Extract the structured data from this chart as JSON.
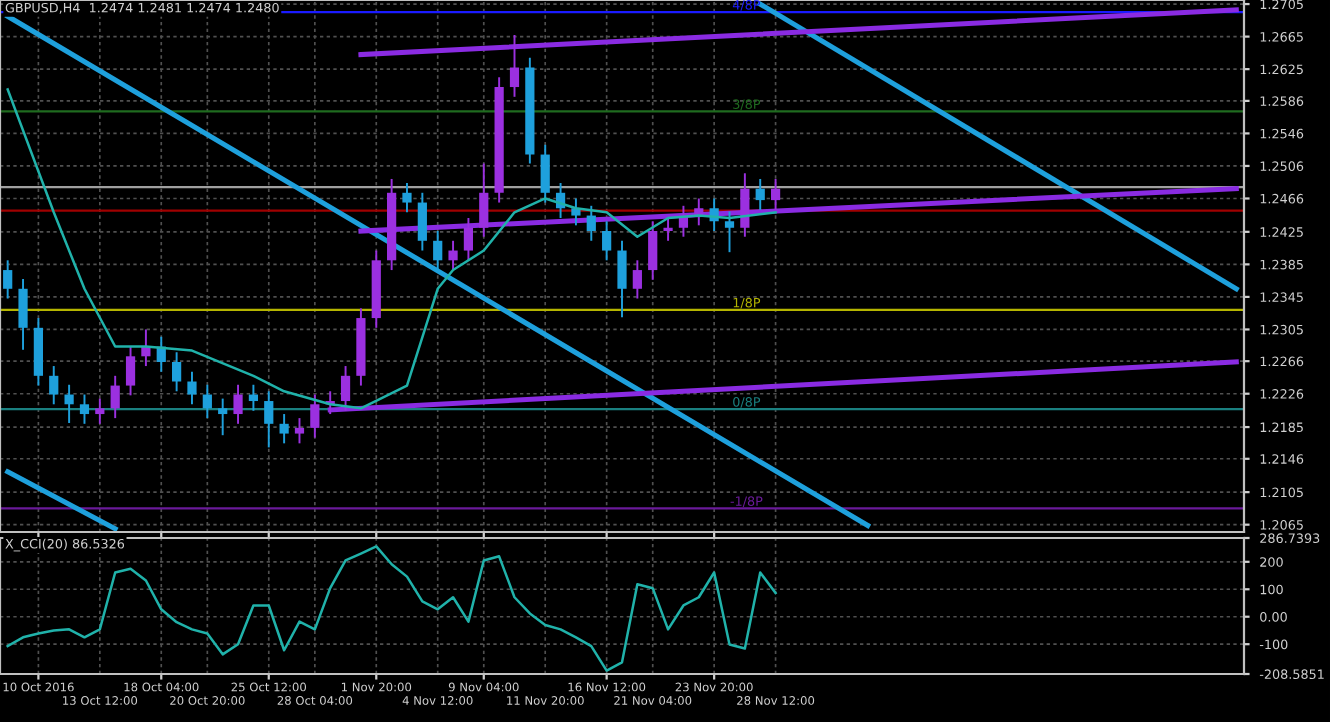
{
  "chart_data": [
    {
      "type": "candlestick",
      "title": "GBPUSD,H4  1.2474 1.2481 1.2474 1.2480",
      "categories": [
        null,
        null,
        null,
        null,
        null,
        null,
        null,
        null,
        null,
        null,
        null,
        null,
        null,
        null,
        null,
        null,
        null,
        null,
        null,
        null,
        null,
        null,
        null,
        null,
        null,
        null,
        null,
        null,
        null,
        null,
        null,
        null,
        null,
        null,
        null,
        null,
        null,
        null,
        null,
        null,
        null,
        null,
        null,
        null,
        null,
        null,
        null,
        null,
        null,
        null,
        null,
        null,
        null,
        null,
        null,
        null,
        null,
        null,
        null,
        null,
        null,
        null,
        null,
        null,
        null,
        null,
        null,
        null,
        null,
        null,
        null,
        null,
        null,
        null,
        null,
        null,
        null,
        null,
        null,
        null,
        null
      ],
      "ohlc": [
        [
          1.2378,
          1.239,
          1.2343,
          1.2355
        ],
        [
          1.2355,
          1.2367,
          1.228,
          1.2307
        ],
        [
          1.2307,
          1.2319,
          1.2236,
          1.2248
        ],
        [
          1.2248,
          1.226,
          1.2213,
          1.2225
        ],
        [
          1.2225,
          1.2237,
          1.219,
          1.2213
        ],
        [
          1.2213,
          1.2225,
          1.2189,
          1.2201
        ],
        [
          1.2201,
          1.222,
          1.2189,
          1.2208
        ],
        [
          1.2208,
          1.2248,
          1.2196,
          1.2236
        ],
        [
          1.2236,
          1.2284,
          1.2224,
          1.2272
        ],
        [
          1.2272,
          1.2305,
          1.226,
          1.2284
        ],
        [
          1.2284,
          1.2296,
          1.2253,
          1.2265
        ],
        [
          1.2265,
          1.2277,
          1.2229,
          1.2241
        ],
        [
          1.2241,
          1.2253,
          1.2213,
          1.2225
        ],
        [
          1.2225,
          1.2237,
          1.2196,
          1.2208
        ],
        [
          1.2208,
          1.222,
          1.2175,
          1.2201
        ],
        [
          1.2201,
          1.2237,
          1.2189,
          1.2225
        ],
        [
          1.2225,
          1.2237,
          1.2205,
          1.2217
        ],
        [
          1.2217,
          1.2229,
          1.216,
          1.2189
        ],
        [
          1.2189,
          1.2201,
          1.2165,
          1.2177
        ],
        [
          1.2177,
          1.2196,
          1.2165,
          1.2184
        ],
        [
          1.2184,
          1.2225,
          1.2172,
          1.2213
        ],
        [
          1.2213,
          1.2229,
          1.2201,
          1.2217
        ],
        [
          1.2217,
          1.226,
          1.2205,
          1.2248
        ],
        [
          1.2248,
          1.2331,
          1.2236,
          1.2319
        ],
        [
          1.2319,
          1.2402,
          1.2307,
          1.239
        ],
        [
          1.239,
          1.249,
          1.2378,
          1.2473
        ],
        [
          1.2473,
          1.2485,
          1.2449,
          1.2461
        ],
        [
          1.2461,
          1.2473,
          1.2402,
          1.2414
        ],
        [
          1.2414,
          1.2426,
          1.2378,
          1.239
        ],
        [
          1.239,
          1.2414,
          1.2378,
          1.2402
        ],
        [
          1.2402,
          1.2442,
          1.239,
          1.243
        ],
        [
          1.243,
          1.2509,
          1.2419,
          1.2473
        ],
        [
          1.2473,
          1.2615,
          1.2461,
          1.2603
        ],
        [
          1.2603,
          1.2667,
          1.2591,
          1.2627
        ],
        [
          1.2627,
          1.2639,
          1.2509,
          1.252
        ],
        [
          1.252,
          1.2532,
          1.2461,
          1.2473
        ],
        [
          1.2473,
          1.2485,
          1.2442,
          1.2454
        ],
        [
          1.2454,
          1.2466,
          1.2433,
          1.2445
        ],
        [
          1.2445,
          1.2457,
          1.2414,
          1.2426
        ],
        [
          1.2426,
          1.2438,
          1.239,
          1.2402
        ],
        [
          1.2402,
          1.2414,
          1.232,
          1.2355
        ],
        [
          1.2355,
          1.239,
          1.2343,
          1.2378
        ],
        [
          1.2378,
          1.2438,
          1.2366,
          1.2426
        ],
        [
          1.2426,
          1.2442,
          1.2414,
          1.243
        ],
        [
          1.243,
          1.2457,
          1.2419,
          1.2445
        ],
        [
          1.2445,
          1.2466,
          1.2433,
          1.2454
        ],
        [
          1.2454,
          1.2466,
          1.2426,
          1.2438
        ],
        [
          1.2438,
          1.245,
          1.24,
          1.243
        ],
        [
          1.243,
          1.2497,
          1.2419,
          1.2478
        ],
        [
          1.2478,
          1.249,
          1.2452,
          1.2464
        ],
        [
          1.2464,
          1.249,
          1.2452,
          1.2478
        ],
        null,
        null,
        null,
        null,
        null,
        null,
        null,
        null,
        null,
        null,
        null,
        null,
        null,
        null,
        null,
        null,
        null,
        null,
        null,
        null,
        null,
        null,
        null,
        null,
        null,
        null,
        null,
        null,
        null,
        null
      ],
      "colors": [
        "#1ea0dc",
        "#1ea0dc",
        "#1ea0dc",
        "#1ea0dc",
        "#1ea0dc",
        "#1ea0dc",
        "#9b30e0",
        "#9b30e0",
        "#9b30e0",
        "#9b30e0",
        "#1ea0dc",
        "#1ea0dc",
        "#1ea0dc",
        "#1ea0dc",
        "#1ea0dc",
        "#9b30e0",
        "#1ea0dc",
        "#1ea0dc",
        "#1ea0dc",
        "#9b30e0",
        "#9b30e0",
        "#9b30e0",
        "#9b30e0",
        "#9b30e0",
        "#9b30e0",
        "#9b30e0",
        "#1ea0dc",
        "#1ea0dc",
        "#1ea0dc",
        "#9b30e0",
        "#9b30e0",
        "#9b30e0",
        "#9b30e0",
        "#9b30e0",
        "#1ea0dc",
        "#1ea0dc",
        "#1ea0dc",
        "#1ea0dc",
        "#1ea0dc",
        "#1ea0dc",
        "#1ea0dc",
        "#9b30e0",
        "#9b30e0",
        "#9b30e0",
        "#9b30e0",
        "#9b30e0",
        "#1ea0dc",
        "#1ea0dc",
        "#9b30e0",
        "#1ea0dc",
        "#9b30e0",
        null,
        null,
        null,
        null,
        null,
        null,
        null,
        null,
        null,
        null,
        null,
        null,
        null,
        null,
        null,
        null,
        null,
        null,
        null,
        null,
        null,
        null,
        null,
        null,
        null,
        null,
        null,
        null,
        null,
        null
      ],
      "series": [
        {
          "type": "line",
          "color": "#20b2aa",
          "values": [
            1.26,
            null,
            null,
            1.2449,
            null,
            1.2355,
            null,
            1.2284,
            null,
            1.2284,
            null,
            null,
            1.2279,
            null,
            null,
            null,
            1.2248,
            null,
            1.2229,
            null,
            null,
            1.2213,
            null,
            1.2208,
            null,
            null,
            1.2236,
            null,
            1.2355,
            1.2378,
            null,
            1.2402,
            null,
            1.2449,
            null,
            1.2466,
            null,
            1.2454,
            null,
            1.2449,
            null,
            1.2419,
            null,
            1.2442,
            null,
            1.2445,
            null,
            1.2442,
            null,
            null,
            1.2449,
            null,
            null,
            null,
            null,
            null,
            null,
            null,
            null,
            null,
            null,
            null,
            null,
            null,
            null,
            null,
            null,
            null,
            null,
            null,
            null,
            null,
            null,
            null,
            null,
            null,
            null,
            null,
            null,
            null,
            null
          ]
        },
        {
          "type": "line",
          "color": "#1ea0dc",
          "values": [
            1.269,
            null,
            null,
            null,
            null,
            null,
            null,
            null,
            null,
            null,
            null,
            null,
            null,
            null,
            null,
            null,
            null,
            null,
            null,
            null,
            null,
            null,
            null,
            null,
            null,
            null,
            null,
            null,
            null,
            null,
            null,
            null,
            null,
            null,
            null,
            null,
            null,
            null,
            null,
            null,
            null,
            null,
            null,
            null,
            null,
            null,
            null,
            null,
            null,
            null,
            null,
            null,
            null,
            null,
            null,
            null,
            1.2064,
            null,
            null,
            null,
            null,
            null,
            null,
            null,
            null,
            null,
            null,
            null,
            null,
            null,
            null,
            null,
            null,
            null,
            null,
            null,
            null,
            null,
            null,
            null,
            null
          ]
        },
        {
          "type": "line",
          "color": "#1ea0dc",
          "values": [
            1.213,
            null,
            null,
            null,
            null,
            null,
            null,
            1.206,
            null,
            null,
            null,
            null,
            null,
            null,
            null,
            null,
            null,
            null,
            null,
            null,
            null,
            null,
            null,
            null,
            null,
            null,
            null,
            null,
            null,
            null,
            null,
            null,
            null,
            null,
            null,
            null,
            null,
            null,
            null,
            null,
            null,
            null,
            null,
            null,
            null,
            null,
            null,
            null,
            null,
            null,
            null,
            null,
            null,
            null,
            null,
            null,
            null,
            null,
            null,
            null,
            null,
            null,
            null,
            null,
            null,
            null,
            null,
            null,
            null,
            null,
            null,
            null,
            null,
            null,
            null,
            null,
            null,
            null,
            null,
            null,
            null
          ]
        },
        {
          "type": "line",
          "color": "#1ea0dc",
          "values": [
            null,
            null,
            null,
            null,
            null,
            null,
            null,
            null,
            null,
            null,
            null,
            null,
            null,
            null,
            null,
            null,
            null,
            null,
            null,
            null,
            null,
            null,
            null,
            null,
            null,
            null,
            null,
            null,
            null,
            null,
            null,
            null,
            null,
            null,
            null,
            null,
            null,
            null,
            null,
            null,
            null,
            null,
            null,
            null,
            null,
            null,
            null,
            null,
            null,
            1.2705,
            null,
            null,
            null,
            null,
            null,
            null,
            null,
            null,
            null,
            null,
            null,
            null,
            null,
            null,
            null,
            null,
            null,
            null,
            null,
            null,
            null,
            null,
            null,
            null,
            null,
            null,
            null,
            null,
            null,
            null,
            1.2355
          ]
        },
        {
          "type": "line",
          "color": "#8a2be2",
          "values": [
            null,
            null,
            null,
            null,
            null,
            null,
            null,
            null,
            null,
            null,
            null,
            null,
            null,
            null,
            null,
            null,
            null,
            null,
            null,
            null,
            null,
            null,
            null,
            1.2643,
            null,
            null,
            null,
            null,
            null,
            null,
            null,
            null,
            null,
            null,
            null,
            null,
            null,
            null,
            null,
            null,
            null,
            null,
            null,
            null,
            null,
            null,
            null,
            null,
            null,
            null,
            null,
            null,
            null,
            null,
            null,
            null,
            null,
            null,
            null,
            null,
            null,
            null,
            null,
            null,
            null,
            null,
            null,
            null,
            null,
            null,
            null,
            null,
            null,
            null,
            null,
            null,
            null,
            null,
            null,
            null,
            1.2698
          ]
        },
        {
          "type": "line",
          "color": "#8a2be2",
          "values": [
            null,
            null,
            null,
            null,
            null,
            null,
            null,
            null,
            null,
            null,
            null,
            null,
            null,
            null,
            null,
            null,
            null,
            null,
            null,
            null,
            null,
            null,
            null,
            1.2426,
            null,
            null,
            null,
            null,
            null,
            null,
            null,
            null,
            null,
            null,
            null,
            null,
            null,
            null,
            null,
            null,
            null,
            null,
            null,
            null,
            null,
            null,
            null,
            null,
            null,
            null,
            null,
            null,
            null,
            null,
            null,
            null,
            null,
            null,
            null,
            null,
            null,
            null,
            null,
            null,
            null,
            null,
            null,
            null,
            null,
            null,
            null,
            null,
            null,
            null,
            null,
            null,
            null,
            null,
            null,
            null,
            1.2478
          ]
        },
        {
          "type": "line",
          "color": "#8a2be2",
          "values": [
            null,
            null,
            null,
            null,
            null,
            null,
            null,
            null,
            null,
            null,
            null,
            null,
            null,
            null,
            null,
            null,
            null,
            null,
            null,
            null,
            null,
            1.2206,
            null,
            null,
            null,
            null,
            null,
            null,
            null,
            null,
            null,
            null,
            null,
            null,
            null,
            null,
            null,
            null,
            null,
            null,
            null,
            null,
            null,
            null,
            null,
            null,
            null,
            null,
            null,
            null,
            null,
            null,
            null,
            null,
            null,
            null,
            null,
            null,
            null,
            null,
            null,
            null,
            null,
            null,
            null,
            null,
            null,
            null,
            null,
            null,
            null,
            null,
            null,
            null,
            null,
            null,
            null,
            null,
            null,
            null,
            1.2265
          ]
        }
      ],
      "ref_lines": [
        {
          "axis": "y",
          "value": 1.2695,
          "label": "4/8P",
          "color": "#1a1aff"
        },
        {
          "axis": "y",
          "value": 1.2573,
          "label": "3/8P",
          "color": "#1f6b1f"
        },
        {
          "axis": "y",
          "value": 1.248,
          "color": "#a0a0a0"
        },
        {
          "axis": "y",
          "value": 1.2451,
          "color": "#a00000"
        },
        {
          "axis": "y",
          "value": 1.2329,
          "label": "1/8P",
          "color": "#b5b500"
        },
        {
          "axis": "y",
          "value": 1.2207,
          "label": "0/8P",
          "color": "#1a8080"
        },
        {
          "axis": "y",
          "value": 1.2085,
          "label": "-1/8P",
          "color": "#6a1a9a"
        }
      ],
      "ylim": [
        1.2056,
        1.271
      ],
      "yticks": [
        1.2065,
        1.2105,
        1.2146,
        1.2185,
        1.2226,
        1.2266,
        1.2305,
        1.2345,
        1.2385,
        1.2425,
        1.2466,
        1.2506,
        1.2546,
        1.2586,
        1.2625,
        1.2665,
        1.2705
      ],
      "tick_labels": "y",
      "grid": true
    },
    {
      "type": "line",
      "title": "X_CCI(20) 86.5326",
      "categories": [
        null,
        null,
        "10 Oct 2016",
        null,
        null,
        null,
        "13 Oct 12:00",
        null,
        null,
        null,
        "18 Oct 04:00",
        null,
        null,
        "20 Oct 20:00",
        null,
        null,
        null,
        "25 Oct 12:00",
        null,
        null,
        "28 Oct 04:00",
        null,
        null,
        null,
        "1 Nov 20:00",
        null,
        null,
        null,
        "4 Nov 12:00",
        null,
        null,
        "9 Nov 04:00",
        null,
        null,
        null,
        "11 Nov 20:00",
        null,
        null,
        null,
        "16 Nov 12:00",
        null,
        null,
        "21 Nov 04:00",
        null,
        null,
        null,
        "23 Nov 20:00",
        null,
        null,
        null,
        "28 Nov 12:00",
        null,
        null,
        null,
        null,
        null,
        null,
        null,
        null,
        null,
        null,
        null,
        null,
        null,
        null,
        null,
        null,
        null,
        null,
        null,
        null,
        null,
        null,
        null,
        null,
        null,
        null,
        null,
        null,
        null,
        null
      ],
      "series": [
        {
          "color": "#20b2aa",
          "values": [
            -107,
            -75,
            -61,
            -50,
            -46,
            -75,
            -46,
            161,
            175,
            132,
            27,
            -20,
            -46,
            -61,
            -137,
            -100,
            41,
            41,
            -122,
            -18,
            -46,
            104,
            205,
            230,
            256,
            191,
            146,
            56,
            27,
            71,
            -18,
            205,
            220,
            71,
            12,
            -30,
            -46,
            -75,
            -107,
            -196,
            -166,
            118,
            104,
            -46,
            41,
            71,
            161,
            -101,
            -116,
            161,
            86,
            null,
            null,
            null,
            null,
            null,
            null,
            null,
            null,
            null,
            null,
            null,
            null,
            null,
            null,
            null,
            null,
            null,
            null,
            null,
            null,
            null,
            null,
            null,
            null,
            null,
            null,
            null,
            null,
            null,
            null
          ]
        }
      ],
      "ylim": [
        -208.5851,
        286.7393
      ],
      "yticks": [
        -208.5851,
        -100,
        {
          "value": 0,
          "label": "0.00"
        },
        100,
        200,
        286.7393
      ],
      "grid": true
    }
  ]
}
